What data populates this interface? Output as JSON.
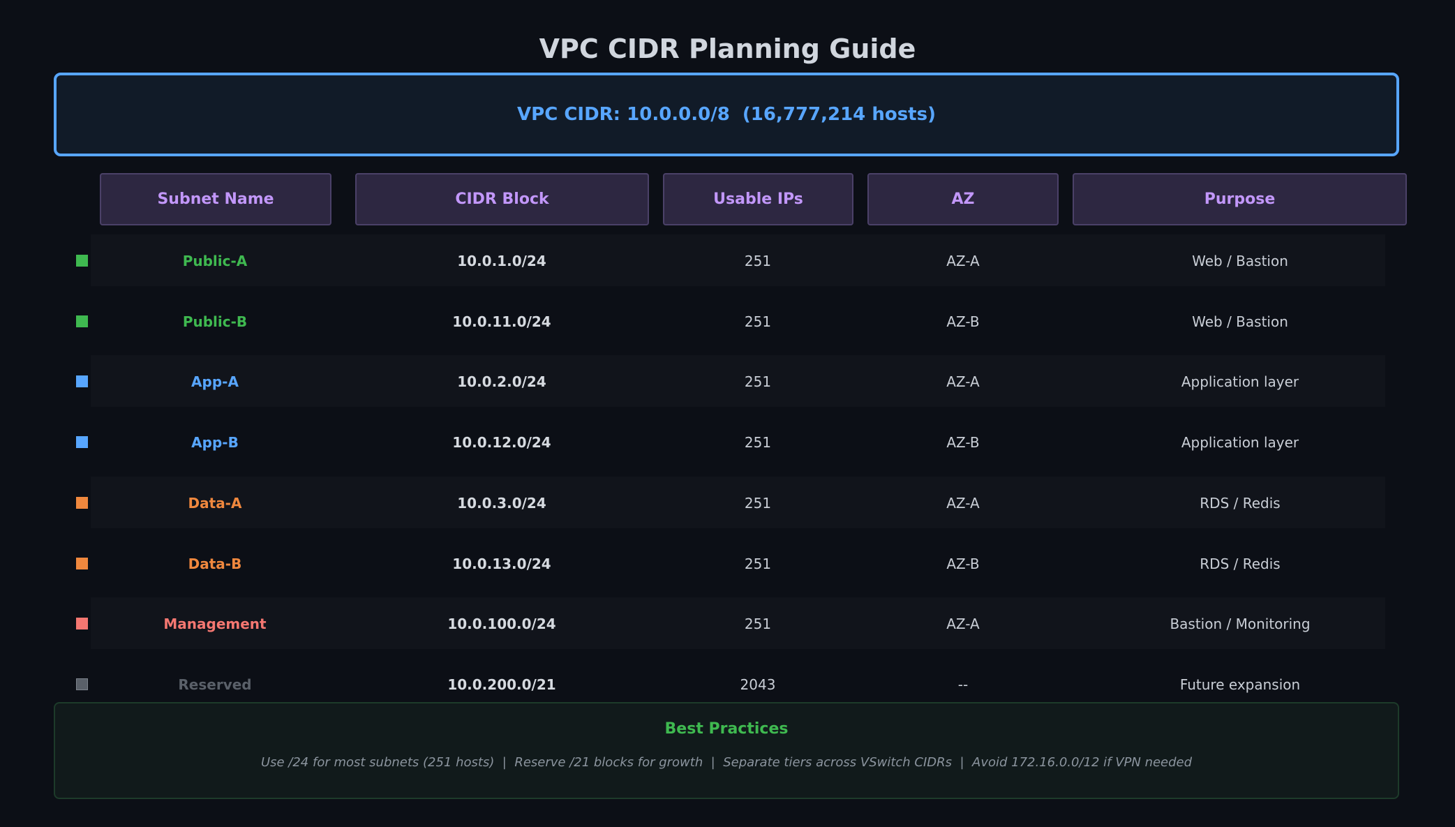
{
  "title": "VPC CIDR Planning Guide",
  "vpc_cidr": "VPC CIDR: 10.0.0.0/8  (16,777,214 hosts)",
  "headers": [
    "Subnet Name",
    "CIDR Block",
    "Usable IPs",
    "AZ",
    "Purpose"
  ],
  "rows": [
    {
      "name": "Public-A",
      "cidr": "10.0.1.0/24",
      "ips": "251",
      "az": "AZ-A",
      "purpose": "Web / Bastion",
      "color": "#3fb950"
    },
    {
      "name": "Public-B",
      "cidr": "10.0.11.0/24",
      "ips": "251",
      "az": "AZ-B",
      "purpose": "Web / Bastion",
      "color": "#3fb950"
    },
    {
      "name": "App-A",
      "cidr": "10.0.2.0/24",
      "ips": "251",
      "az": "AZ-A",
      "purpose": "Application layer",
      "color": "#58a6ff"
    },
    {
      "name": "App-B",
      "cidr": "10.0.12.0/24",
      "ips": "251",
      "az": "AZ-B",
      "purpose": "Application layer",
      "color": "#58a6ff"
    },
    {
      "name": "Data-A",
      "cidr": "10.0.3.0/24",
      "ips": "251",
      "az": "AZ-A",
      "purpose": "RDS / Redis",
      "color": "#f0883e"
    },
    {
      "name": "Data-B",
      "cidr": "10.0.13.0/24",
      "ips": "251",
      "az": "AZ-B",
      "purpose": "RDS / Redis",
      "color": "#f0883e"
    },
    {
      "name": "Management",
      "cidr": "10.0.100.0/24",
      "ips": "251",
      "az": "AZ-A",
      "purpose": "Bastion / Monitoring",
      "color": "#f47771"
    },
    {
      "name": "Reserved",
      "cidr": "10.0.200.0/21",
      "ips": "2043",
      "az": "--",
      "purpose": "Future expansion",
      "color": "#5a6069"
    }
  ],
  "best_practices": {
    "title": "Best Practices",
    "text": "Use /24 for most subnets (251 hosts)  |  Reserve /21 blocks for growth  |  Separate tiers across VSwitch CIDRs  |  Avoid 172.16.0.0/12 if VPN needed"
  }
}
